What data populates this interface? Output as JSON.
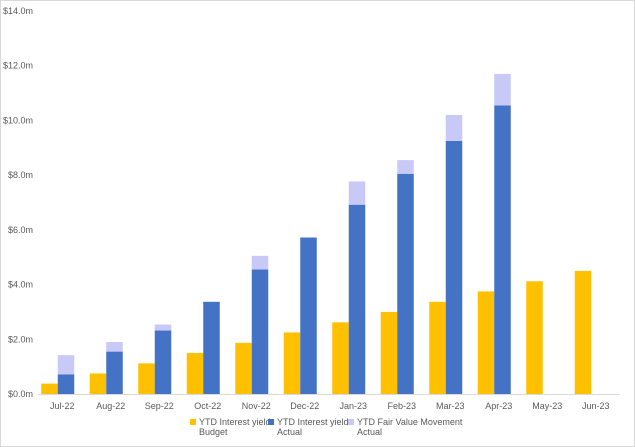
{
  "chart_data": {
    "type": "bar",
    "stacked_series": [
      "YTD Interest yield Actual",
      "YTD Fair Value Movement Actual"
    ],
    "categories": [
      "Jul-22",
      "Aug-22",
      "Sep-22",
      "Oct-22",
      "Nov-22",
      "Dec-22",
      "Jan-23",
      "Feb-23",
      "Mar-23",
      "Apr-23",
      "May-23",
      "Jun-23"
    ],
    "series": [
      {
        "name": "YTD Interest yield Budget",
        "name_lines": [
          "YTD Interest yield",
          "Budget"
        ],
        "color": "#ffc000",
        "values": [
          0.38,
          0.75,
          1.12,
          1.5,
          1.87,
          2.25,
          2.62,
          3.0,
          3.37,
          3.75,
          4.12,
          4.5
        ]
      },
      {
        "name": "YTD Interest yield Actual",
        "name_lines": [
          "YTD Interest yield",
          "Actual"
        ],
        "color": "#4472c4",
        "values": [
          0.72,
          1.55,
          2.32,
          3.37,
          4.55,
          5.72,
          6.92,
          8.05,
          9.25,
          10.55,
          null,
          null
        ]
      },
      {
        "name": "YTD Fair Value Movement Actual",
        "name_lines": [
          "YTD Fair Value Movement",
          "Actual"
        ],
        "color": "#c9c9f7",
        "values": [
          0.7,
          0.35,
          0.22,
          0.0,
          0.5,
          0.0,
          0.85,
          0.5,
          0.95,
          1.15,
          null,
          null
        ]
      }
    ],
    "y_ticks": [
      "$0.0m",
      "$2.0m",
      "$4.0m",
      "$6.0m",
      "$8.0m",
      "$10.0m",
      "$12.0m",
      "$14.0m"
    ],
    "ylim": [
      0,
      14
    ],
    "grid": false,
    "legend": "bottom"
  }
}
